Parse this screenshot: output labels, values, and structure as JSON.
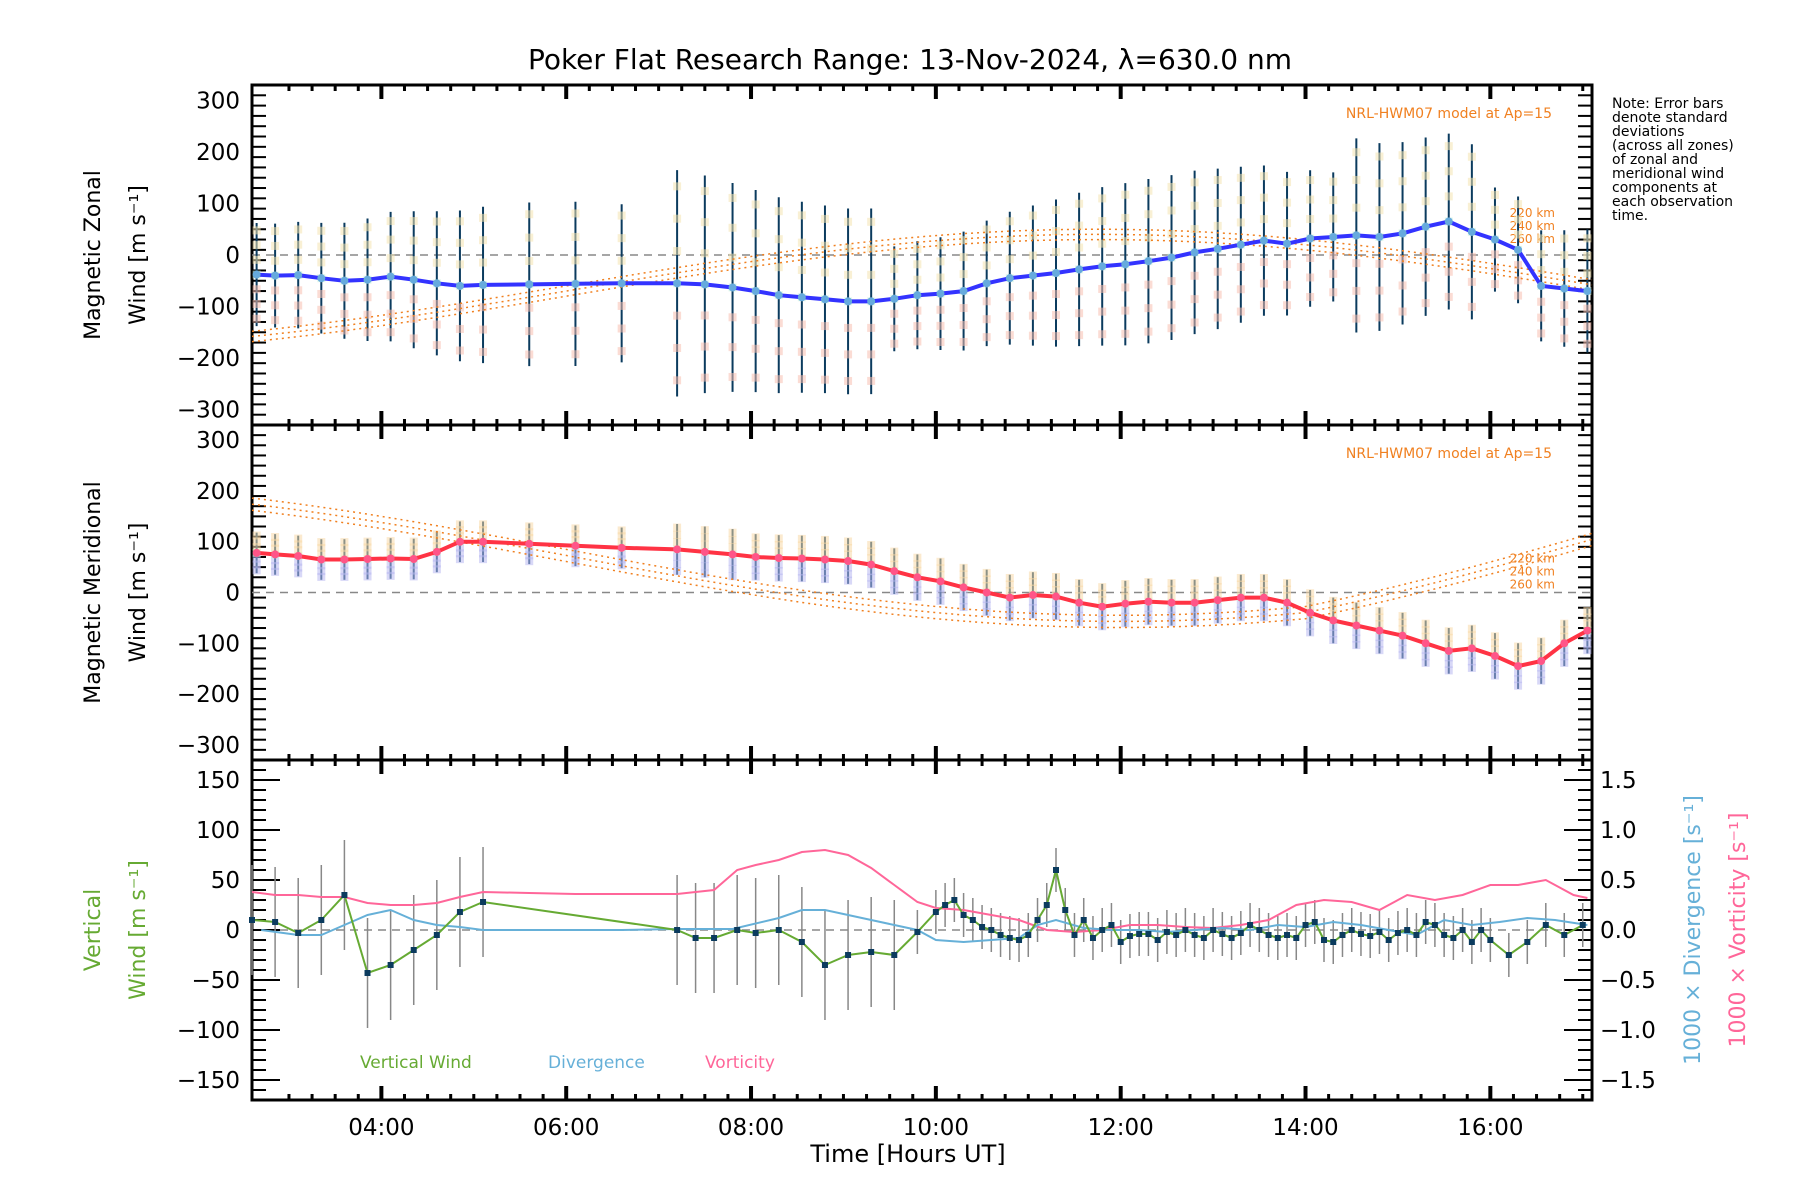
{
  "chart_data": {
    "type": "line",
    "title": "Poker Flat Research Range: 13-Nov-2024, λ=630.0 nm",
    "xlabel": "Time [Hours UT]",
    "xlim": [
      2.6,
      17.1
    ],
    "x_ticks": [
      4,
      6,
      8,
      10,
      12,
      14,
      16
    ],
    "x_tick_labels": [
      "04:00",
      "06:00",
      "08:00",
      "10:00",
      "12:00",
      "14:00",
      "16:00"
    ],
    "note": [
      "Note: Error bars",
      "denote standard",
      "deviations",
      "(across all zones)",
      "of zonal and",
      "meridional wind",
      "components at",
      "each observation",
      "time."
    ],
    "colors": {
      "zonal": "#3333ff",
      "meridional": "#ff3344",
      "vertical": "#66aa33",
      "divergence": "#66b0d8",
      "vorticity": "#ff6699",
      "model": "#f08020",
      "errorbar": "#0b3b5e"
    },
    "panels": [
      {
        "id": "zonal",
        "ylabel": [
          "Magnetic Zonal",
          "Wind [m s⁻¹]"
        ],
        "ylim": [
          -330,
          330
        ],
        "y_ticks": [
          300,
          200,
          100,
          0,
          -100,
          -200,
          -300
        ],
        "y_tick_labels": [
          "300",
          "200",
          "100",
          "0",
          "−100",
          "−200",
          "−300"
        ],
        "model_label": "NRL-HWM07 model at Ap=15",
        "model_altitudes": [
          "220 km",
          "240 km",
          "260 km"
        ],
        "series": [
          {
            "name": "Zonal wind",
            "x": [
              2.65,
              2.85,
              3.1,
              3.35,
              3.6,
              3.85,
              4.1,
              4.35,
              4.6,
              4.85,
              5.1,
              5.6,
              6.1,
              6.6,
              7.2,
              7.5,
              7.8,
              8.05,
              8.3,
              8.55,
              8.8,
              9.05,
              9.3,
              9.55,
              9.8,
              10.05,
              10.3,
              10.55,
              10.8,
              11.05,
              11.3,
              11.55,
              11.8,
              12.05,
              12.3,
              12.55,
              12.8,
              13.05,
              13.3,
              13.55,
              13.8,
              14.05,
              14.3,
              14.55,
              14.8,
              15.05,
              15.3,
              15.55,
              15.8,
              16.05,
              16.3,
              16.55,
              16.8,
              17.05
            ],
            "y": [
              -38,
              -40,
              -39,
              -45,
              -50,
              -48,
              -42,
              -48,
              -55,
              -60,
              -58,
              -57,
              -56,
              -55,
              -55,
              -57,
              -63,
              -70,
              -78,
              -82,
              -86,
              -90,
              -90,
              -85,
              -78,
              -75,
              -70,
              -55,
              -45,
              -40,
              -35,
              -28,
              -22,
              -18,
              -12,
              -5,
              5,
              12,
              20,
              28,
              22,
              32,
              35,
              38,
              35,
              42,
              55,
              65,
              45,
              30,
              10,
              -60,
              -65,
              -70
            ]
          },
          {
            "name": "Error bar (std)",
            "x": [
              2.65,
              3.1,
              3.6,
              4.1,
              4.6,
              5.1,
              7.2,
              7.8,
              8.3,
              8.8,
              9.3,
              9.8,
              10.3,
              10.8,
              11.3,
              11.8,
              12.3,
              12.8,
              13.3,
              13.8,
              14.3,
              14.8,
              15.3,
              15.8,
              16.3,
              16.8
            ],
            "y": [
              100,
              110,
              105,
              110,
              135,
              160,
              180,
              200,
              230,
              240,
              200,
              160,
              140,
              130,
              120,
              110,
              110,
              110,
              130,
              150,
              160,
              170,
              190,
              200,
              160,
              150
            ]
          }
        ]
      },
      {
        "id": "meridional",
        "ylabel": [
          "Magnetic Meridional",
          "Wind [m s⁻¹]"
        ],
        "ylim": [
          -330,
          330
        ],
        "y_ticks": [
          300,
          200,
          100,
          0,
          -100,
          -200,
          -300
        ],
        "y_tick_labels": [
          "300",
          "200",
          "100",
          "0",
          "−100",
          "−200",
          "−300"
        ],
        "model_label": "NRL-HWM07 model at Ap=15",
        "model_altitudes": [
          "220 km",
          "240 km",
          "260 km"
        ],
        "series": [
          {
            "name": "Meridional wind",
            "x": [
              2.65,
              2.85,
              3.1,
              3.35,
              3.6,
              3.85,
              4.1,
              4.35,
              4.6,
              4.85,
              5.1,
              5.6,
              6.1,
              6.6,
              7.2,
              7.5,
              7.8,
              8.05,
              8.3,
              8.55,
              8.8,
              9.05,
              9.3,
              9.55,
              9.8,
              10.05,
              10.3,
              10.55,
              10.8,
              11.05,
              11.3,
              11.55,
              11.8,
              12.05,
              12.3,
              12.55,
              12.8,
              13.05,
              13.3,
              13.55,
              13.8,
              14.05,
              14.3,
              14.55,
              14.8,
              15.05,
              15.3,
              15.55,
              15.8,
              16.05,
              16.3,
              16.55,
              16.8,
              17.05
            ],
            "y": [
              78,
              75,
              72,
              65,
              65,
              66,
              67,
              66,
              80,
              100,
              100,
              96,
              92,
              88,
              85,
              80,
              75,
              70,
              68,
              67,
              65,
              62,
              55,
              42,
              30,
              22,
              10,
              0,
              -10,
              -5,
              -8,
              -20,
              -28,
              -22,
              -18,
              -20,
              -20,
              -15,
              -10,
              -10,
              -20,
              -40,
              -55,
              -65,
              -75,
              -85,
              -100,
              -115,
              -110,
              -125,
              -145,
              -135,
              -100,
              -75
            ]
          }
        ]
      },
      {
        "id": "vertical",
        "ylabel": [
          "Vertical",
          "Wind [m s⁻¹]"
        ],
        "ylim": [
          -170,
          170
        ],
        "y_ticks": [
          150,
          100,
          50,
          0,
          -50,
          -100,
          -150
        ],
        "y_tick_labels": [
          "150",
          "100",
          "50",
          "0",
          "−50",
          "−100",
          "−150"
        ],
        "y2_label_divergence": "1000 × Divergence [s⁻¹]",
        "y2_label_vorticity": "1000 × Vorticity [s⁻¹]",
        "y2lim": [
          -1.7,
          1.7
        ],
        "y2_ticks": [
          1.5,
          1.0,
          0.5,
          0.0,
          -0.5,
          -1.0,
          -1.5
        ],
        "y2_tick_labels": [
          "1.5",
          "1.0",
          "0.5",
          "0.0",
          "−0.5",
          "−1.0",
          "−1.5"
        ],
        "legend": [
          "Vertical Wind",
          "Divergence",
          "Vorticity"
        ],
        "series": [
          {
            "name": "Vertical Wind",
            "axis": "left",
            "x": [
              2.6,
              2.85,
              3.1,
              3.35,
              3.6,
              3.85,
              4.1,
              4.35,
              4.6,
              4.85,
              5.1,
              7.2,
              7.4,
              7.6,
              7.85,
              8.05,
              8.3,
              8.55,
              8.8,
              9.05,
              9.3,
              9.55,
              9.8,
              10.0,
              10.1,
              10.2,
              10.3,
              10.4,
              10.5,
              10.6,
              10.7,
              10.8,
              10.9,
              11.0,
              11.1,
              11.2,
              11.3,
              11.4,
              11.5,
              11.6,
              11.7,
              11.8,
              11.9,
              12.0,
              12.1,
              12.2,
              12.3,
              12.4,
              12.5,
              12.6,
              12.7,
              12.8,
              12.9,
              13.0,
              13.1,
              13.2,
              13.3,
              13.4,
              13.5,
              13.6,
              13.7,
              13.8,
              13.9,
              14.0,
              14.1,
              14.2,
              14.3,
              14.4,
              14.5,
              14.6,
              14.7,
              14.8,
              14.9,
              15.0,
              15.1,
              15.2,
              15.3,
              15.4,
              15.5,
              15.6,
              15.7,
              15.8,
              15.9,
              16.0,
              16.2,
              16.4,
              16.6,
              16.8,
              17.0
            ],
            "y": [
              10,
              8,
              -3,
              10,
              35,
              -43,
              -35,
              -20,
              -5,
              18,
              28,
              0,
              -8,
              -8,
              0,
              -3,
              0,
              -12,
              -35,
              -25,
              -22,
              -25,
              -2,
              18,
              25,
              30,
              15,
              10,
              3,
              0,
              -5,
              -8,
              -10,
              -5,
              10,
              25,
              60,
              20,
              -5,
              10,
              -8,
              0,
              5,
              -12,
              -6,
              -4,
              -4,
              -10,
              -2,
              -5,
              0,
              -5,
              -8,
              0,
              -4,
              -8,
              -3,
              5,
              0,
              -5,
              -8,
              -5,
              -8,
              5,
              8,
              -10,
              -12,
              -5,
              0,
              -4,
              -6,
              -2,
              -10,
              -3,
              0,
              -5,
              8,
              5,
              -5,
              -8,
              0,
              -12,
              0,
              -10,
              -25,
              -12,
              5,
              -5,
              5
            ]
          },
          {
            "name": "Divergence",
            "axis": "right",
            "x": [
              2.7,
              3.1,
              3.35,
              3.6,
              3.85,
              4.1,
              4.35,
              4.6,
              4.85,
              5.1,
              5.6,
              6.1,
              6.6,
              7.2,
              7.8,
              8.3,
              8.55,
              8.8,
              9.05,
              9.3,
              9.55,
              9.8,
              10.0,
              10.3,
              10.6,
              10.9,
              11.1,
              11.3,
              11.6,
              11.9,
              12.2,
              12.5,
              12.8,
              13.1,
              13.4,
              13.7,
              14.0,
              14.3,
              14.6,
              14.9,
              15.2,
              15.5,
              15.8,
              16.1,
              16.4,
              16.7,
              17.05
            ],
            "y": [
              0.0,
              -0.05,
              -0.05,
              0.05,
              0.15,
              0.2,
              0.1,
              0.05,
              0.03,
              0.0,
              0.0,
              0.0,
              0.0,
              0.01,
              0.01,
              0.12,
              0.2,
              0.2,
              0.15,
              0.1,
              0.05,
              0.0,
              -0.1,
              -0.12,
              -0.1,
              -0.08,
              0.05,
              0.1,
              0.02,
              0.0,
              0.0,
              -0.02,
              0.0,
              0.02,
              0.0,
              0.05,
              0.03,
              0.08,
              0.05,
              0.0,
              -0.05,
              0.1,
              0.05,
              0.08,
              0.12,
              0.1,
              0.05
            ]
          },
          {
            "name": "Vorticity",
            "axis": "right",
            "x": [
              2.6,
              2.85,
              3.1,
              3.35,
              3.6,
              3.85,
              4.1,
              4.35,
              4.6,
              4.85,
              5.1,
              5.6,
              6.1,
              6.6,
              7.2,
              7.4,
              7.6,
              7.85,
              8.05,
              8.3,
              8.55,
              8.8,
              9.05,
              9.3,
              9.55,
              9.8,
              10.0,
              10.3,
              10.6,
              10.9,
              11.2,
              11.5,
              11.8,
              12.1,
              12.4,
              12.7,
              13.0,
              13.3,
              13.6,
              13.9,
              14.2,
              14.5,
              14.8,
              15.1,
              15.4,
              15.7,
              16.0,
              16.3,
              16.6,
              16.9,
              17.05
            ],
            "y": [
              0.38,
              0.35,
              0.35,
              0.33,
              0.33,
              0.27,
              0.25,
              0.25,
              0.27,
              0.33,
              0.38,
              0.37,
              0.36,
              0.36,
              0.36,
              0.38,
              0.4,
              0.6,
              0.65,
              0.7,
              0.78,
              0.8,
              0.75,
              0.62,
              0.45,
              0.28,
              0.22,
              0.2,
              0.15,
              0.1,
              0.0,
              -0.02,
              0.0,
              0.05,
              0.05,
              0.03,
              0.02,
              0.05,
              0.1,
              0.25,
              0.3,
              0.28,
              0.2,
              0.35,
              0.3,
              0.35,
              0.45,
              0.45,
              0.5,
              0.35,
              0.32
            ]
          }
        ]
      }
    ]
  }
}
